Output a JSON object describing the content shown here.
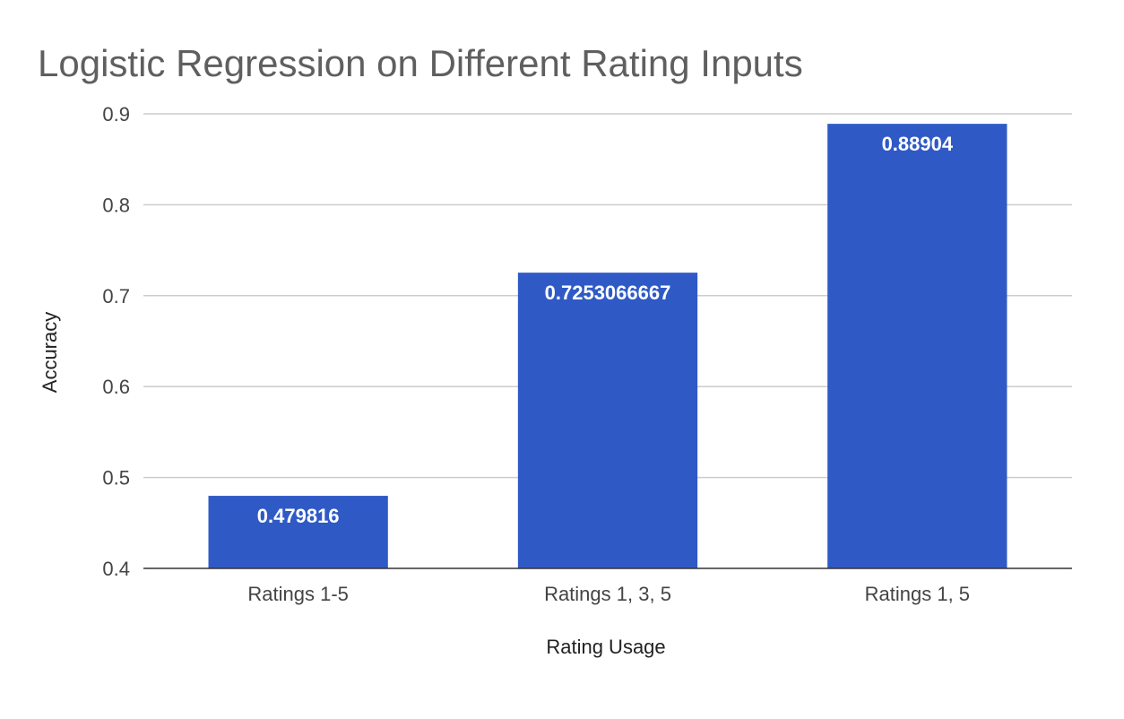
{
  "chart_data": {
    "type": "bar",
    "title": "Logistic Regression on Different Rating Inputs",
    "xlabel": "Rating Usage",
    "ylabel": "Accuracy",
    "categories": [
      "Ratings 1-5",
      "Ratings 1, 3, 5",
      "Ratings 1, 5"
    ],
    "values": [
      0.479816,
      0.7253066667,
      0.88904
    ],
    "data_labels": [
      "0.479816",
      "0.7253066667",
      "0.88904"
    ],
    "ylim": [
      0.4,
      0.9
    ],
    "yticks": [
      0.4,
      0.5,
      0.6,
      0.7,
      0.8,
      0.9
    ],
    "ytick_labels": [
      "0.4",
      "0.5",
      "0.6",
      "0.7",
      "0.8",
      "0.9"
    ],
    "grid": true,
    "legend": "none",
    "colors": {
      "bar": "#2f5ac6",
      "grid": "#cccccc",
      "baseline": "#333333"
    }
  }
}
